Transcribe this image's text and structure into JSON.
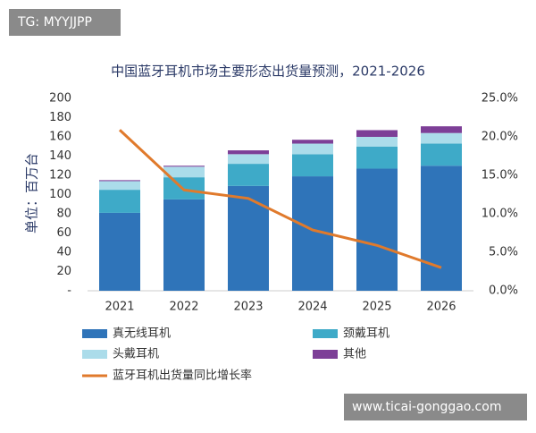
{
  "chart_data": {
    "type": "bar",
    "title": "中国蓝牙耳机市场主要形态出货量预测，2021-2026",
    "y_label": "单位：百万台",
    "categories": [
      "2021",
      "2022",
      "2023",
      "2024",
      "2025",
      "2026"
    ],
    "series": [
      {
        "name": "真无线耳机",
        "color": "#2f74b9",
        "values": [
          81,
          95,
          109,
          119,
          127,
          130
        ]
      },
      {
        "name": "颈戴耳机",
        "color": "#3eaac8",
        "values": [
          24,
          23,
          23,
          23,
          23,
          23
        ]
      },
      {
        "name": "头戴耳机",
        "color": "#abdcea",
        "values": [
          9,
          11,
          10,
          11,
          10,
          11
        ]
      },
      {
        "name": "其他",
        "color": "#7d3f97",
        "values": [
          1,
          1,
          4,
          4,
          7,
          7
        ]
      },
      {
        "name": "蓝牙耳机出货量同比增长率",
        "color": "#e07a2c",
        "type": "line",
        "axis": "y2",
        "values": [
          20.9,
          13.1,
          12.0,
          7.9,
          5.9,
          3.0
        ]
      }
    ],
    "ylim": [
      0,
      200
    ],
    "yticks": [
      {
        "value": 0,
        "label": "-"
      },
      20,
      40,
      60,
      80,
      100,
      120,
      140,
      160,
      180,
      200
    ],
    "y2lim": [
      0,
      25
    ],
    "y2ticks": [
      {
        "value": 0,
        "label": "0.0%"
      },
      {
        "value": 5,
        "label": "5.0%"
      },
      {
        "value": 10,
        "label": "10.0%"
      },
      {
        "value": 15,
        "label": "15.0%"
      },
      {
        "value": 20,
        "label": "20.0%"
      },
      {
        "value": 25,
        "label": "25.0%"
      }
    ],
    "stacked": true
  },
  "watermarks": {
    "top": "TG: MYYJJPP",
    "bottom": "www.ticai-gonggao.com"
  }
}
